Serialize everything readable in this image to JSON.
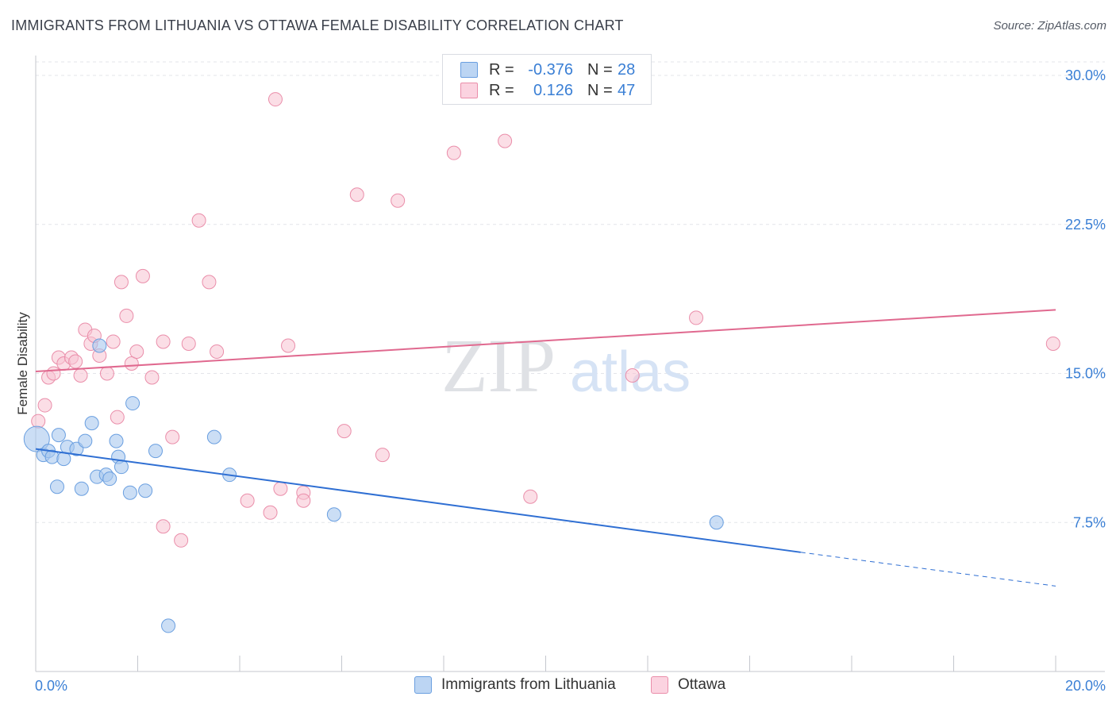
{
  "title": "IMMIGRANTS FROM LITHUANIA VS OTTAWA FEMALE DISABILITY CORRELATION CHART",
  "source": "Source: ZipAtlas.com",
  "watermark": {
    "zip": "ZIP",
    "atlas": "atlas"
  },
  "legend_stats": [
    {
      "r_label": "R =",
      "r_value": "-0.376",
      "n_label": "N =",
      "n_value": "28"
    },
    {
      "r_label": "R =",
      "r_value": "0.126",
      "n_label": "N =",
      "n_value": "47"
    }
  ],
  "colors": {
    "blue_fill": "#a9c8ef",
    "blue_stroke": "#6a9fe0",
    "blue_line": "#2f6fd3",
    "pink_fill": "#f7c2d2",
    "pink_stroke": "#ea8eaa",
    "pink_line": "#e0698f",
    "axis_text": "#3a7fd5",
    "grid": "#e3e5ea"
  },
  "chart_data": {
    "type": "scatter",
    "title": "IMMIGRANTS FROM LITHUANIA VS OTTAWA FEMALE DISABILITY CORRELATION CHART",
    "xlabel": "",
    "ylabel": "Female Disability",
    "xlim": [
      0,
      20
    ],
    "ylim": [
      0,
      31
    ],
    "x_tick_labels": [
      "0.0%",
      "20.0%"
    ],
    "y_ticks": [
      7.5,
      15.0,
      22.5,
      30.0
    ],
    "y_tick_labels": [
      "7.5%",
      "15.0%",
      "22.5%",
      "30.0%"
    ],
    "grid": true,
    "legend_position": "top-center",
    "series": [
      {
        "name": "Immigrants from Lithuania",
        "color": "#a9c8ef",
        "points": [
          [
            0.02,
            11.7
          ],
          [
            0.15,
            10.9
          ],
          [
            0.25,
            11.1
          ],
          [
            0.32,
            10.8
          ],
          [
            0.45,
            11.9
          ],
          [
            0.55,
            10.7
          ],
          [
            0.62,
            11.3
          ],
          [
            0.8,
            11.2
          ],
          [
            0.97,
            11.6
          ],
          [
            1.1,
            12.5
          ],
          [
            1.2,
            9.8
          ],
          [
            1.38,
            9.9
          ],
          [
            1.45,
            9.7
          ],
          [
            1.58,
            11.6
          ],
          [
            1.62,
            10.8
          ],
          [
            1.68,
            10.3
          ],
          [
            1.85,
            9.0
          ],
          [
            1.9,
            13.5
          ],
          [
            2.15,
            9.1
          ],
          [
            2.35,
            11.1
          ],
          [
            0.42,
            9.3
          ],
          [
            0.9,
            9.2
          ],
          [
            2.6,
            2.3
          ],
          [
            3.5,
            11.8
          ],
          [
            3.8,
            9.9
          ],
          [
            5.85,
            7.9
          ],
          [
            13.35,
            7.5
          ],
          [
            1.25,
            16.4
          ]
        ]
      },
      {
        "name": "Ottawa",
        "color": "#f7c2d2",
        "points": [
          [
            0.05,
            12.6
          ],
          [
            0.18,
            13.4
          ],
          [
            0.25,
            14.8
          ],
          [
            0.35,
            15.0
          ],
          [
            0.45,
            15.8
          ],
          [
            0.55,
            15.5
          ],
          [
            0.7,
            15.8
          ],
          [
            0.78,
            15.6
          ],
          [
            0.88,
            14.9
          ],
          [
            0.97,
            17.2
          ],
          [
            1.08,
            16.5
          ],
          [
            1.15,
            16.9
          ],
          [
            1.25,
            15.9
          ],
          [
            1.4,
            15.0
          ],
          [
            1.52,
            16.6
          ],
          [
            1.6,
            12.8
          ],
          [
            1.68,
            19.6
          ],
          [
            1.78,
            17.9
          ],
          [
            1.88,
            15.5
          ],
          [
            1.98,
            16.1
          ],
          [
            2.1,
            19.9
          ],
          [
            2.28,
            14.8
          ],
          [
            2.5,
            16.6
          ],
          [
            2.68,
            11.8
          ],
          [
            2.5,
            7.3
          ],
          [
            2.85,
            6.6
          ],
          [
            3.0,
            16.5
          ],
          [
            3.2,
            22.7
          ],
          [
            3.4,
            19.6
          ],
          [
            3.55,
            16.1
          ],
          [
            4.15,
            8.6
          ],
          [
            4.6,
            8.0
          ],
          [
            4.7,
            28.8
          ],
          [
            4.8,
            9.2
          ],
          [
            4.95,
            16.4
          ],
          [
            5.25,
            9.0
          ],
          [
            5.25,
            8.6
          ],
          [
            6.05,
            12.1
          ],
          [
            6.3,
            24.0
          ],
          [
            6.8,
            10.9
          ],
          [
            7.1,
            23.7
          ],
          [
            8.2,
            26.1
          ],
          [
            9.2,
            26.7
          ],
          [
            9.7,
            8.8
          ],
          [
            11.7,
            14.9
          ],
          [
            12.95,
            17.8
          ],
          [
            19.95,
            16.5
          ]
        ]
      }
    ],
    "trendlines": [
      {
        "series": "Immigrants from Lithuania",
        "x": [
          0,
          15.0
        ],
        "y": [
          11.2,
          6.0
        ],
        "dashed_to": [
          20.0,
          4.3
        ]
      },
      {
        "series": "Ottawa",
        "x": [
          0,
          20.0
        ],
        "y": [
          15.1,
          18.2
        ]
      }
    ]
  }
}
